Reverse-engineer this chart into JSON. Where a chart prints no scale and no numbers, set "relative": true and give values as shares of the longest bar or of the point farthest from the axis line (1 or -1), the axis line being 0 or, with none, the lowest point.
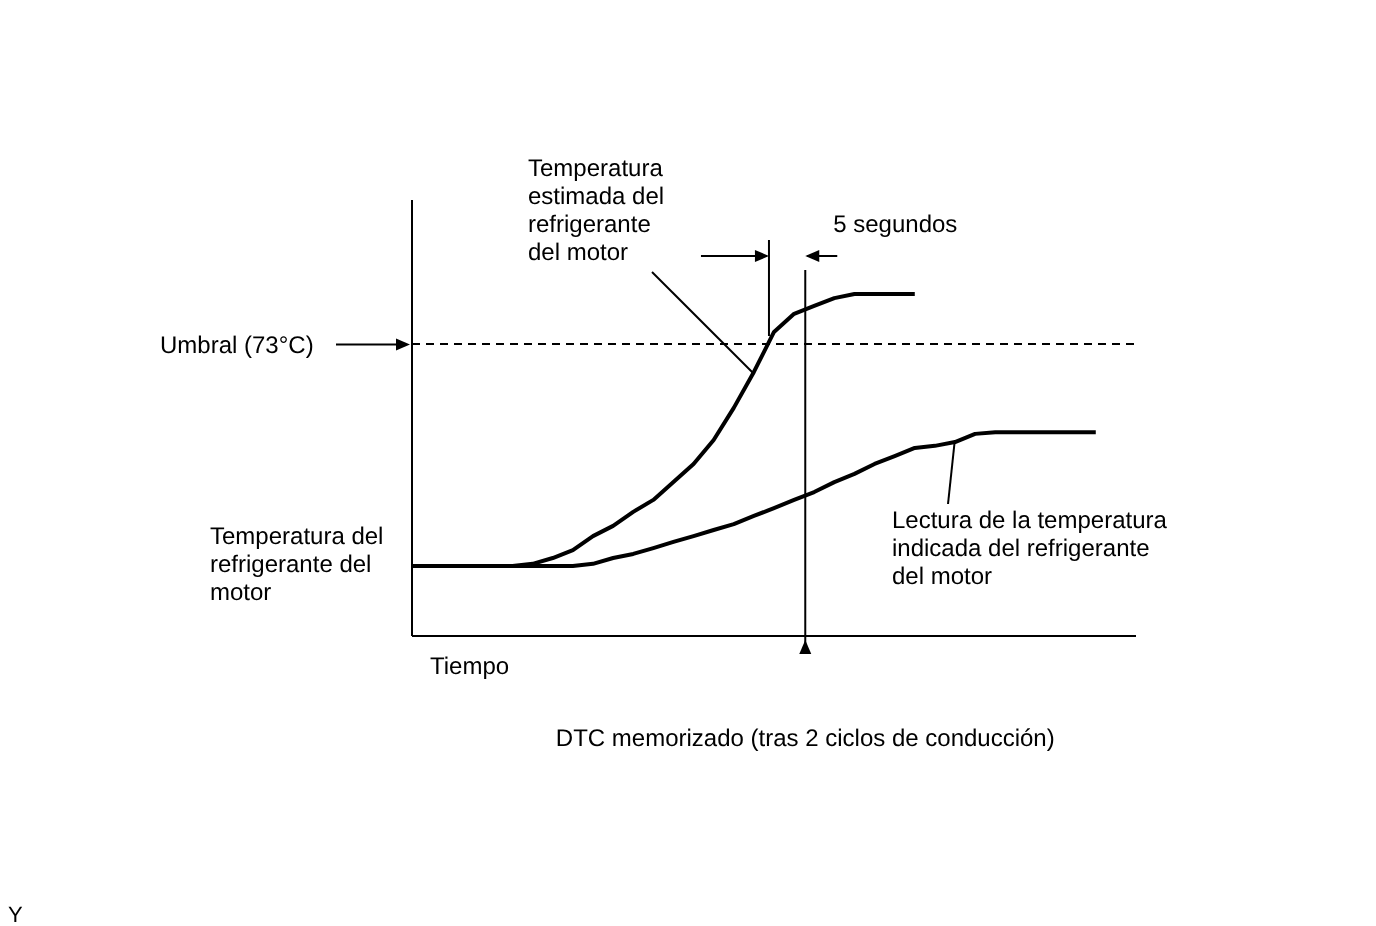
{
  "chart_data": {
    "type": "line",
    "relative": true,
    "xlabel": "Tiempo",
    "marker": "none",
    "line_style": "solid",
    "categories": [
      null,
      null,
      null,
      null,
      null,
      null,
      null,
      null,
      null,
      null,
      null,
      null,
      null,
      null,
      null,
      null,
      null,
      null,
      null,
      null,
      null,
      null,
      null,
      null,
      null,
      null,
      null,
      null,
      null,
      null,
      null,
      null,
      null,
      null,
      null
    ],
    "series": [
      {
        "name": "Temperatura estimada del refrigerante del motor",
        "color": "#000000",
        "values": [
          0.205,
          0.205,
          0.205,
          0.205,
          0.205,
          0.205,
          0.211,
          0.228,
          0.251,
          0.292,
          0.322,
          0.363,
          0.398,
          0.45,
          0.503,
          0.573,
          0.667,
          0.772,
          0.889,
          0.942,
          0.965,
          0.988,
          1,
          1,
          1,
          1,
          null,
          null,
          null,
          null,
          null,
          null,
          null,
          null,
          null
        ]
      },
      {
        "name": "Lectura de la temperatura indicada del refrigerante del motor",
        "color": "#000000",
        "values": [
          0.205,
          0.205,
          0.205,
          0.205,
          0.205,
          0.205,
          0.205,
          0.205,
          0.205,
          0.211,
          0.228,
          0.24,
          0.257,
          0.275,
          0.292,
          0.31,
          0.327,
          0.351,
          0.374,
          0.398,
          0.421,
          0.45,
          0.474,
          0.503,
          0.526,
          0.55,
          0.556,
          0.567,
          0.591,
          0.596,
          0.596,
          0.596,
          0.596,
          0.596,
          0.596
        ]
      }
    ],
    "ref_lines": [
      {
        "axis": "y",
        "value": 0.854,
        "label": "Umbral (73°C)",
        "line_style": "dashed",
        "color": "#000000"
      }
    ],
    "annotations": [
      "Temperatura del refrigerante del motor",
      "DTC memorizado (tras 2 ciclos de conducción)",
      "5 segundos",
      "Y"
    ]
  }
}
